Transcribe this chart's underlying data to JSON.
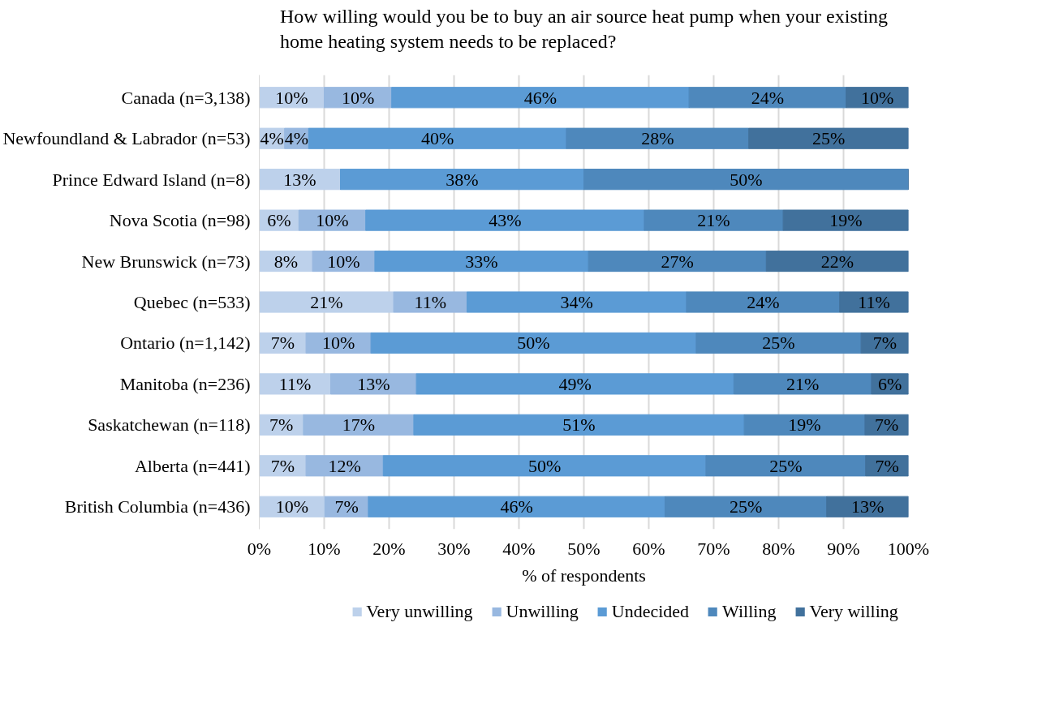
{
  "chart_data": {
    "type": "bar",
    "orientation": "horizontal",
    "stacked": true,
    "title": "How willing would you be to buy an air source heat pump when your existing home heating system needs to be replaced?",
    "xlabel": "% of respondents",
    "categories": [
      "Canada (n=3,138)",
      "Newfoundland & Labrador (n=53)",
      "Prince Edward Island (n=8)",
      "Nova Scotia (n=98)",
      "New Brunswick (n=73)",
      "Quebec (n=533)",
      "Ontario (n=1,142)",
      "Manitoba (n=236)",
      "Saskatchewan (n=118)",
      "Alberta (n=441)",
      "British Columbia (n=436)"
    ],
    "series": [
      {
        "name": "Very unwilling",
        "color": "#bdd1eb",
        "values": [
          10.0,
          3.9,
          12.5,
          6.1,
          8.2,
          20.7,
          7.2,
          11.0,
          6.8,
          7.2,
          10.1
        ],
        "value_labels": [
          "10%",
          "4%",
          "13%",
          "6%",
          "8%",
          "21%",
          "7%",
          "11%",
          "7%",
          "7%",
          "10%"
        ]
      },
      {
        "name": "Unwilling",
        "color": "#98b8e0",
        "values": [
          10.4,
          3.7,
          0,
          10.3,
          9.6,
          11.3,
          10.0,
          13.2,
          17.0,
          11.9,
          6.7
        ],
        "value_labels": [
          "10%",
          "4%",
          null,
          "10%",
          "10%",
          "11%",
          "10%",
          "13%",
          "17%",
          "12%",
          "7%"
        ]
      },
      {
        "name": "Undecided",
        "color": "#5b9bd5",
        "values": [
          45.8,
          39.7,
          37.5,
          42.9,
          32.9,
          33.8,
          50.1,
          48.9,
          50.9,
          49.7,
          45.7
        ],
        "value_labels": [
          "46%",
          "40%",
          "38%",
          "43%",
          "33%",
          "34%",
          "50%",
          "49%",
          "51%",
          "50%",
          "46%"
        ]
      },
      {
        "name": "Willing",
        "color": "#4e88bc",
        "values": [
          24.2,
          28.1,
          50.0,
          21.4,
          27.4,
          23.6,
          25.4,
          21.2,
          18.6,
          24.6,
          24.9
        ],
        "value_labels": [
          "24%",
          "28%",
          "50%",
          "21%",
          "27%",
          "24%",
          "25%",
          "21%",
          "19%",
          "25%",
          "25%"
        ]
      },
      {
        "name": "Very willing",
        "color": "#41719c",
        "values": [
          9.6,
          24.6,
          0,
          19.3,
          21.9,
          10.6,
          7.3,
          5.7,
          6.7,
          6.6,
          12.6
        ],
        "value_labels": [
          "10%",
          "25%",
          null,
          "19%",
          "22%",
          "11%",
          "7%",
          "6%",
          "7%",
          "7%",
          "13%"
        ]
      }
    ],
    "xlim": [
      0,
      100
    ],
    "xticks": [
      {
        "value": 0,
        "label": "0%"
      },
      {
        "value": 10,
        "label": "10%"
      },
      {
        "value": 20,
        "label": "20%"
      },
      {
        "value": 30,
        "label": "30%"
      },
      {
        "value": 40,
        "label": "40%"
      },
      {
        "value": 50,
        "label": "50%"
      },
      {
        "value": 60,
        "label": "60%"
      },
      {
        "value": 70,
        "label": "70%"
      },
      {
        "value": 80,
        "label": "80%"
      },
      {
        "value": 90,
        "label": "90%"
      },
      {
        "value": 100,
        "label": "100%"
      }
    ],
    "grid": "x",
    "legend": "bottom"
  }
}
